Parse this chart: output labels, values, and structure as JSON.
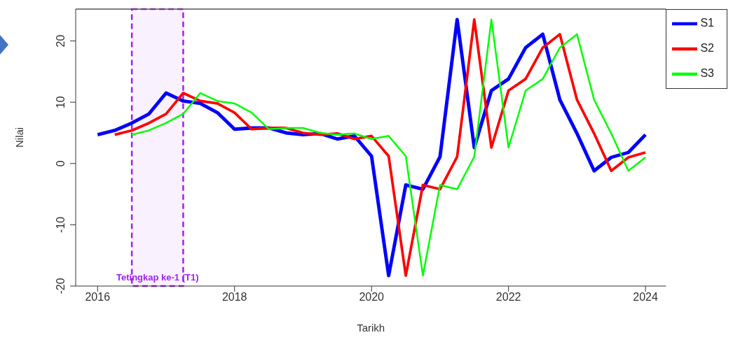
{
  "chart_data": {
    "type": "line",
    "xlabel": "Tarikh",
    "ylabel": "Nilai",
    "xlim": [
      2015.68,
      2024.3
    ],
    "xticks": [
      2016,
      2018,
      2020,
      2022,
      2024
    ],
    "ylim": [
      -20,
      25.2
    ],
    "yticks": [
      -20,
      -10,
      0,
      10,
      20
    ],
    "grid": false,
    "legend": "top right",
    "marker": "none",
    "line_style": "solid",
    "bands": [
      {
        "axis": "x",
        "from": 2016.5,
        "to": 2017.25,
        "label": "Tetingkap ke-1 (T1)",
        "color": "#a020f0"
      }
    ],
    "series": [
      {
        "name": "S1",
        "color": "#0000ff",
        "x": [
          2016,
          2016.25,
          2016.5,
          2016.75,
          2017,
          2017.25,
          2017.5,
          2017.75,
          2018,
          2018.25,
          2018.5,
          2018.75,
          2019,
          2019.25,
          2019.5,
          2019.75,
          2020,
          2020.25,
          2020.5,
          2020.75,
          2021,
          2021.25,
          2021.5,
          2021.75,
          2022,
          2022.25,
          2022.5,
          2022.75,
          2023,
          2023.25,
          2023.5,
          2023.75,
          2024
        ],
        "values": [
          4.7,
          5.4,
          6.6,
          8.1,
          11.5,
          10.2,
          9.8,
          8.3,
          5.6,
          5.8,
          5.8,
          5.0,
          4.7,
          4.9,
          4.0,
          4.5,
          1.2,
          -18.3,
          -3.5,
          -4.2,
          1.1,
          23.5,
          2.6,
          11.9,
          13.8,
          18.9,
          21.1,
          10.4,
          4.9,
          -1.2,
          1.0,
          1.8,
          4.7
        ]
      },
      {
        "name": "S2",
        "color": "#ff0000",
        "x": [
          2016.25,
          2016.5,
          2016.75,
          2017,
          2017.25,
          2017.5,
          2017.75,
          2018,
          2018.25,
          2018.5,
          2018.75,
          2019,
          2019.25,
          2019.5,
          2019.75,
          2020,
          2020.25,
          2020.5,
          2020.75,
          2021,
          2021.25,
          2021.5,
          2021.75,
          2022,
          2022.25,
          2022.5,
          2022.75,
          2023,
          2023.25,
          2023.5,
          2023.75,
          2024
        ],
        "values": [
          4.7,
          5.4,
          6.6,
          8.1,
          11.5,
          10.2,
          9.8,
          8.3,
          5.6,
          5.8,
          5.8,
          5.0,
          4.7,
          4.9,
          4.0,
          4.5,
          1.2,
          -18.3,
          -3.5,
          -4.2,
          1.1,
          23.5,
          2.6,
          11.9,
          13.8,
          18.9,
          21.1,
          10.4,
          4.9,
          -1.2,
          1.0,
          1.8
        ]
      },
      {
        "name": "S3",
        "color": "#00ff00",
        "x": [
          2016.5,
          2016.75,
          2017,
          2017.25,
          2017.5,
          2017.75,
          2018,
          2018.25,
          2018.5,
          2018.75,
          2019,
          2019.25,
          2019.5,
          2019.75,
          2020,
          2020.25,
          2020.5,
          2020.75,
          2021,
          2021.25,
          2021.5,
          2021.75,
          2022,
          2022.25,
          2022.5,
          2022.75,
          2023,
          2023.25,
          2023.5,
          2023.75,
          2024
        ],
        "values": [
          4.7,
          5.4,
          6.6,
          8.1,
          11.5,
          10.2,
          9.8,
          8.3,
          5.6,
          5.8,
          5.8,
          5.0,
          4.7,
          4.9,
          4.0,
          4.5,
          1.2,
          -18.3,
          -3.5,
          -4.2,
          1.1,
          23.5,
          2.6,
          11.9,
          13.8,
          18.9,
          21.1,
          10.4,
          4.9,
          -1.2,
          1.0
        ]
      }
    ]
  }
}
